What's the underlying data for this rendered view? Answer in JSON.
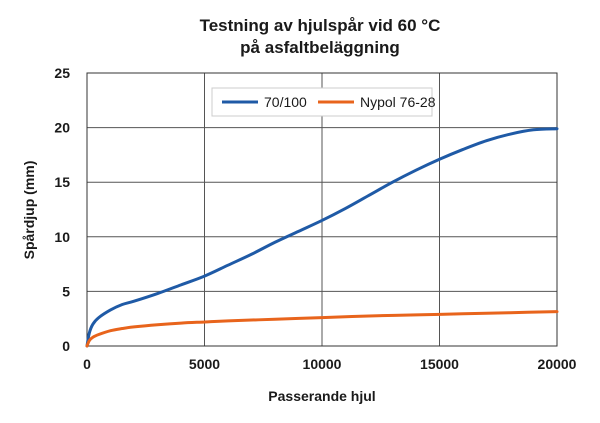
{
  "chart_data": {
    "type": "line",
    "title_lines": [
      "Testning av hjulspår vid 60 °C",
      "på asfaltbeläggning"
    ],
    "xlabel": "Passerande hjul",
    "ylabel": "Spårdjup (mm)",
    "xlim": [
      0,
      20000
    ],
    "ylim": [
      0,
      25
    ],
    "x_ticks": [
      0,
      5000,
      10000,
      15000,
      20000
    ],
    "y_ticks": [
      0,
      5,
      10,
      15,
      20,
      25
    ],
    "grid": true,
    "legend_position": "top-center",
    "series": [
      {
        "name": "70/100",
        "color": "#1f5aa6",
        "x": [
          0,
          100,
          250,
          500,
          1000,
          1500,
          2000,
          3000,
          4000,
          5000,
          6000,
          7000,
          8000,
          9000,
          10000,
          11000,
          12000,
          13000,
          14000,
          15000,
          16000,
          17000,
          18000,
          19000,
          20000
        ],
        "y": [
          0,
          1.2,
          2.0,
          2.6,
          3.3,
          3.8,
          4.1,
          4.8,
          5.6,
          6.4,
          7.4,
          8.4,
          9.5,
          10.5,
          11.5,
          12.6,
          13.8,
          15.0,
          16.1,
          17.1,
          18.0,
          18.8,
          19.4,
          19.8,
          19.9
        ]
      },
      {
        "name": "Nypol 76-28",
        "color": "#e8641c",
        "x": [
          0,
          100,
          250,
          500,
          1000,
          1500,
          2000,
          3000,
          4000,
          5000,
          6000,
          8000,
          10000,
          12000,
          14000,
          16000,
          18000,
          20000
        ],
        "y": [
          0,
          0.5,
          0.8,
          1.05,
          1.4,
          1.6,
          1.75,
          1.95,
          2.1,
          2.2,
          2.3,
          2.45,
          2.6,
          2.75,
          2.85,
          2.95,
          3.05,
          3.15
        ]
      }
    ]
  }
}
